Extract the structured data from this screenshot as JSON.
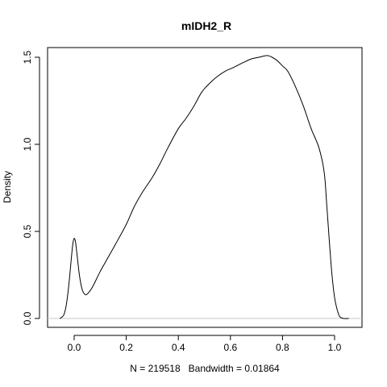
{
  "chart_data": {
    "type": "line",
    "title": "mIDH2_R",
    "xlabel": "N = 219518   Bandwidth = 0.01864",
    "ylabel": "Density",
    "xlim": [
      -0.05,
      1.05
    ],
    "ylim": [
      0,
      1.5
    ],
    "xticks": [
      0.0,
      0.2,
      0.4,
      0.6,
      0.8,
      1.0
    ],
    "xtick_labels": [
      "0.0",
      "0.2",
      "0.4",
      "0.6",
      "0.8",
      "1.0"
    ],
    "yticks": [
      0.0,
      0.5,
      1.0,
      1.5
    ],
    "ytick_labels": [
      "0.0",
      "0.5",
      "1.0",
      "1.5"
    ],
    "grid": false,
    "series": [
      {
        "x": [
          -0.055,
          -0.04,
          -0.03,
          -0.02,
          -0.01,
          -0.005,
          0.0,
          0.005,
          0.01,
          0.02,
          0.03,
          0.04,
          0.05,
          0.07,
          0.1,
          0.13,
          0.16,
          0.2,
          0.23,
          0.26,
          0.3,
          0.33,
          0.36,
          0.4,
          0.43,
          0.46,
          0.49,
          0.52,
          0.55,
          0.58,
          0.61,
          0.65,
          0.68,
          0.71,
          0.74,
          0.76,
          0.78,
          0.8,
          0.82,
          0.85,
          0.88,
          0.91,
          0.94,
          0.96,
          0.97,
          0.98,
          0.99,
          1.0,
          1.01,
          1.02,
          1.035,
          1.055
        ],
        "y": [
          0.0,
          0.02,
          0.08,
          0.2,
          0.36,
          0.43,
          0.46,
          0.44,
          0.38,
          0.25,
          0.17,
          0.14,
          0.14,
          0.18,
          0.27,
          0.35,
          0.43,
          0.54,
          0.64,
          0.72,
          0.81,
          0.89,
          0.98,
          1.09,
          1.15,
          1.22,
          1.3,
          1.35,
          1.39,
          1.42,
          1.44,
          1.47,
          1.49,
          1.5,
          1.51,
          1.5,
          1.48,
          1.45,
          1.42,
          1.33,
          1.22,
          1.09,
          0.98,
          0.84,
          0.65,
          0.44,
          0.25,
          0.12,
          0.05,
          0.01,
          0.0,
          0.0
        ]
      }
    ]
  }
}
